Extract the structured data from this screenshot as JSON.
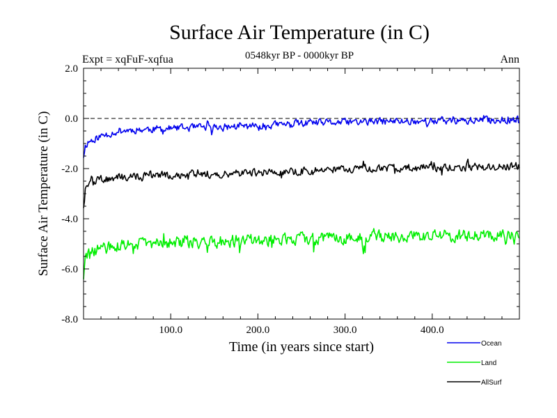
{
  "chart_data": {
    "type": "line",
    "title": "Surface Air Temperature (in C)",
    "subtitle": "0548kyr BP - 0000kyr BP",
    "left_label": "Expt = xqFuF-xqfua",
    "right_label": "Ann",
    "xlabel": "Time (in years since start)",
    "ylabel": "Surface Air Temperature (in C)",
    "xlim": [
      0,
      500
    ],
    "ylim": [
      -8.0,
      2.0
    ],
    "x_ticks": [
      100,
      200,
      300,
      400
    ],
    "x_tick_labels": [
      "100.0",
      "200.0",
      "300.0",
      "400.0"
    ],
    "y_ticks": [
      2,
      0,
      -2,
      -4,
      -6,
      -8
    ],
    "y_tick_labels": [
      "2.0",
      "0.0",
      "-2.0",
      "-4.0",
      "-6.0",
      "-8.0"
    ],
    "reference_line": 0.0,
    "x_knots": [
      0,
      2,
      5,
      10,
      20,
      40,
      60,
      100,
      150,
      200,
      250,
      300,
      350,
      400,
      450,
      500
    ],
    "series": [
      {
        "name": "Ocean",
        "color": "#0000ee",
        "seed": 11,
        "noise": 0.13,
        "values": [
          -1.5,
          -1.1,
          -0.95,
          -0.85,
          -0.7,
          -0.5,
          -0.45,
          -0.4,
          -0.35,
          -0.3,
          -0.2,
          -0.15,
          -0.12,
          -0.1,
          -0.08,
          -0.05
        ]
      },
      {
        "name": "Land",
        "color": "#00ee00",
        "seed": 29,
        "noise": 0.22,
        "values": [
          -6.3,
          -5.6,
          -5.5,
          -5.3,
          -5.2,
          -5.1,
          -5.0,
          -4.95,
          -4.9,
          -4.85,
          -4.8,
          -4.75,
          -4.72,
          -4.7,
          -4.65,
          -4.6
        ]
      },
      {
        "name": "AllSurf",
        "color": "#000000",
        "seed": 47,
        "noise": 0.14,
        "values": [
          -3.5,
          -2.8,
          -2.6,
          -2.55,
          -2.45,
          -2.35,
          -2.3,
          -2.25,
          -2.2,
          -2.15,
          -2.1,
          -2.0,
          -1.98,
          -1.95,
          -1.95,
          -1.9
        ]
      }
    ]
  }
}
